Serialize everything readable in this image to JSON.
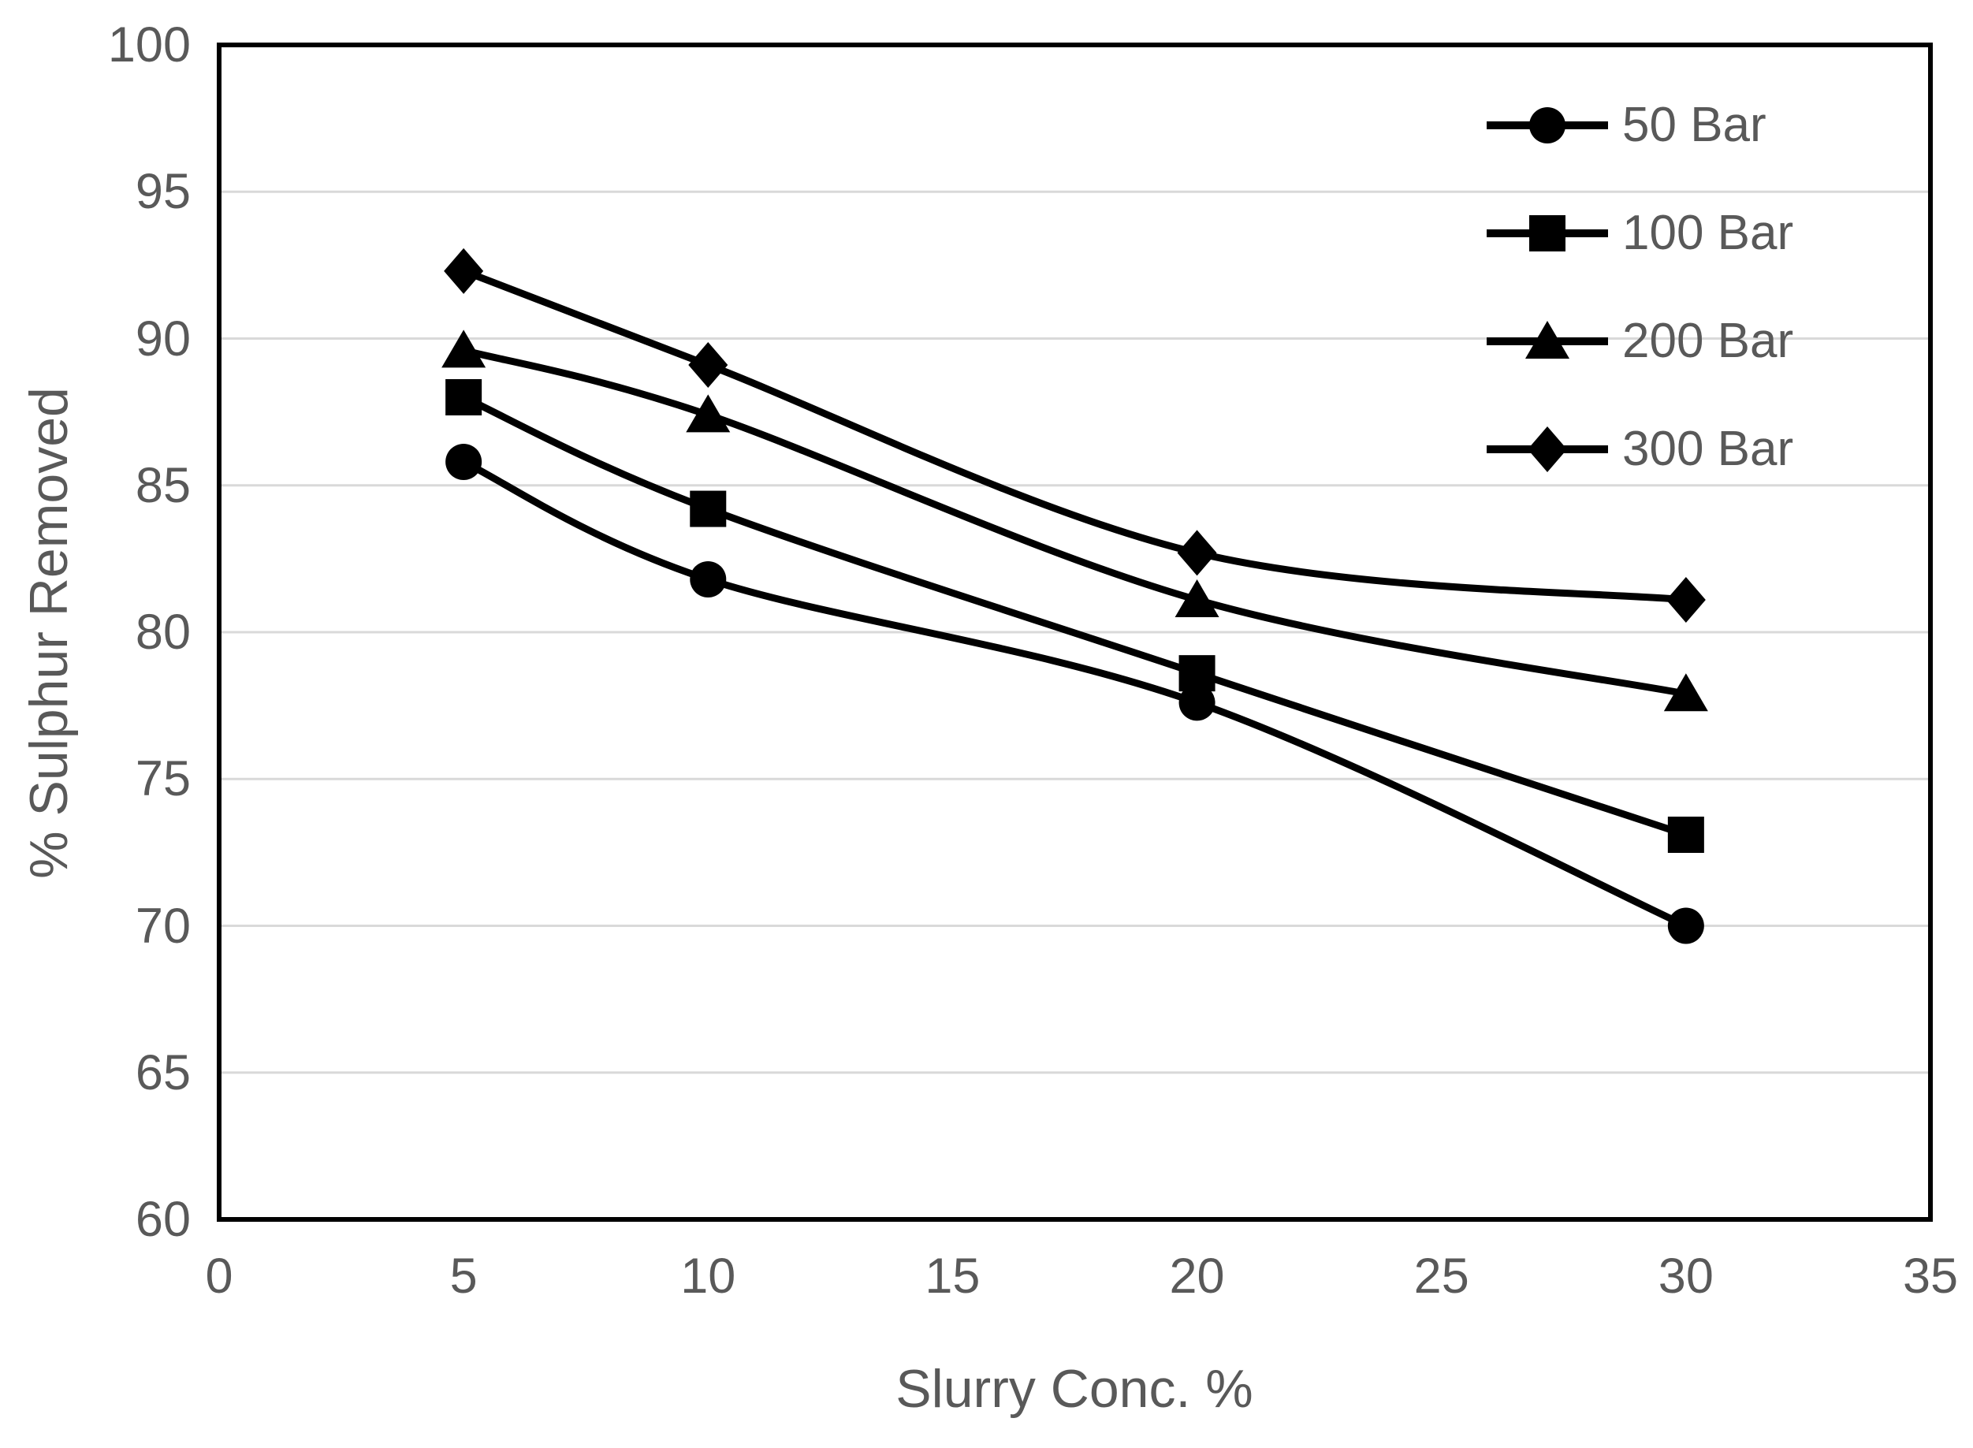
{
  "chart_data": {
    "type": "line",
    "title": "",
    "xlabel": "Slurry Conc. %",
    "ylabel": "% Sulphur Removed",
    "x": [
      5,
      10,
      20,
      30
    ],
    "series": [
      {
        "name": "50 Bar",
        "marker": "circle",
        "values": [
          85.8,
          81.8,
          77.6,
          70.0
        ]
      },
      {
        "name": "100 Bar",
        "marker": "square",
        "values": [
          88.0,
          84.2,
          78.6,
          73.1
        ]
      },
      {
        "name": "200 Bar",
        "marker": "triangle",
        "values": [
          89.6,
          87.4,
          81.1,
          77.9
        ]
      },
      {
        "name": "300 Bar",
        "marker": "diamond",
        "values": [
          92.3,
          89.1,
          82.7,
          81.1
        ]
      }
    ],
    "x_axis": {
      "min": 0,
      "max": 35,
      "tick_step": 5,
      "ticks": [
        "0",
        "5",
        "10",
        "15",
        "20",
        "25",
        "30",
        "35"
      ]
    },
    "y_axis": {
      "min": 60,
      "max": 100,
      "tick_step": 5,
      "ticks": [
        "100",
        "95",
        "90",
        "85",
        "80",
        "75",
        "70",
        "65",
        "60"
      ]
    },
    "grid": "horizontal-major",
    "legend_position": "inside-top-right",
    "line_style": "smooth",
    "colors": {
      "series": "#000000",
      "text": "#595959",
      "gridline": "#D9D9D9",
      "plot_border": "#000000",
      "background": "#FFFFFF"
    }
  }
}
